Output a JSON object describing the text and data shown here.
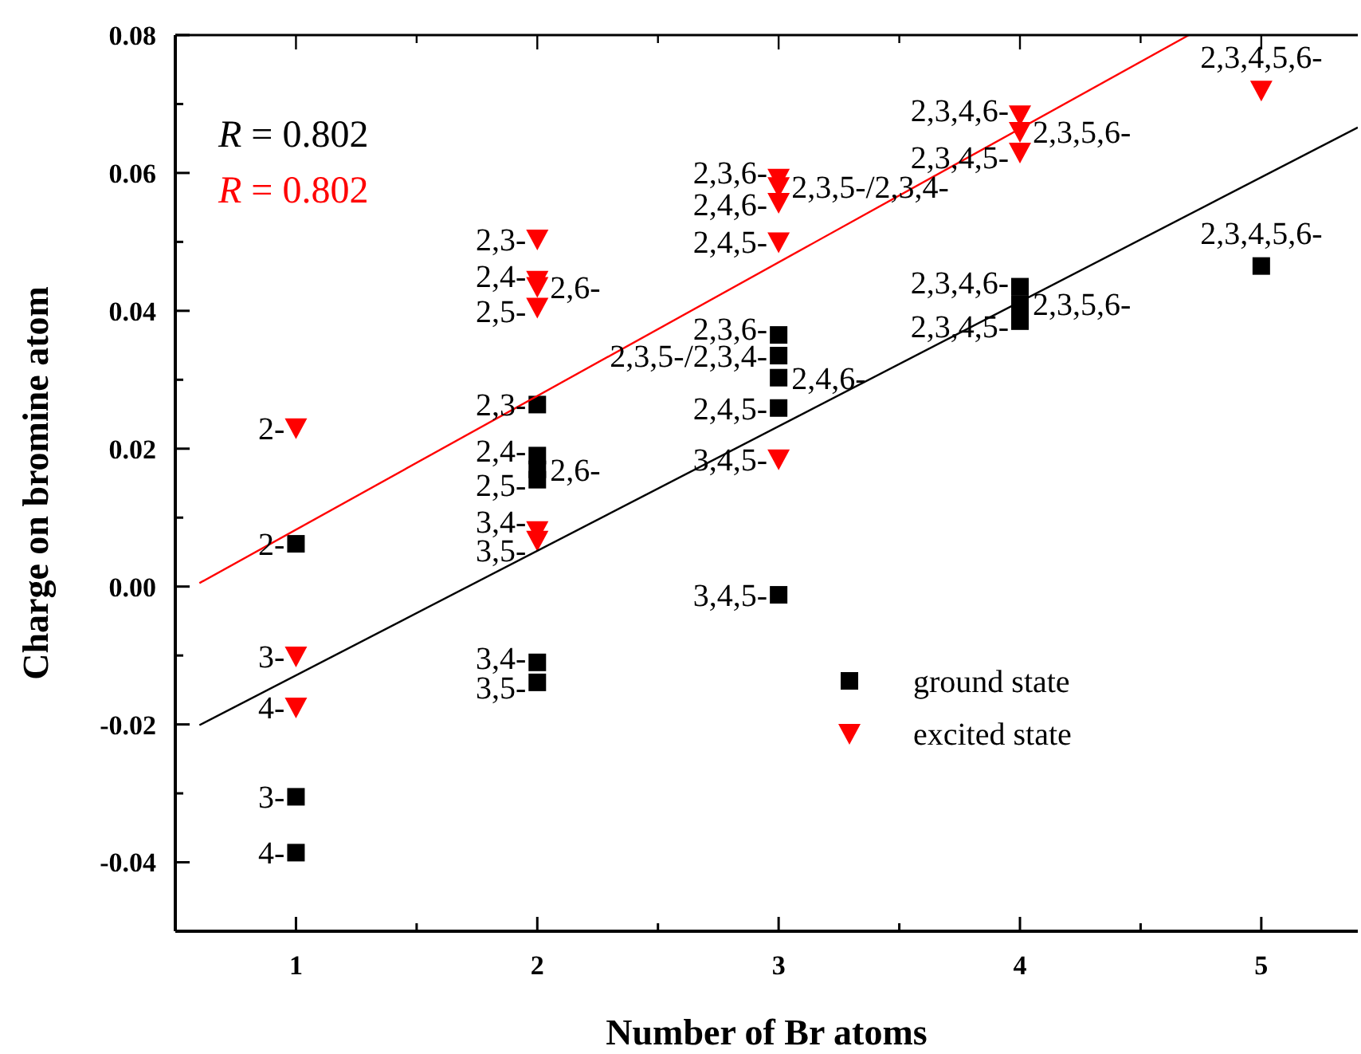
{
  "chart_data": {
    "type": "scatter",
    "xlabel": "Number of Br atoms",
    "ylabel": "Charge on bromine atom",
    "xlim": [
      0.5,
      5.4
    ],
    "ylim": [
      -0.05,
      0.08
    ],
    "xticks": [
      1,
      {
        "value": 1.5,
        "label": null
      },
      2,
      {
        "value": 2.5,
        "label": null
      },
      3,
      {
        "value": 3.5,
        "label": null
      },
      4,
      {
        "value": 4.5,
        "label": null
      },
      5
    ],
    "yticks": [
      {
        "value": -0.05,
        "label": null
      },
      {
        "value": -0.04,
        "label": "-0.04"
      },
      {
        "value": -0.03,
        "label": null
      },
      {
        "value": -0.02,
        "label": "-0.02"
      },
      {
        "value": -0.01,
        "label": null
      },
      {
        "value": 0,
        "label": "0.00"
      },
      {
        "value": 0.01,
        "label": null
      },
      {
        "value": 0.02,
        "label": "0.02"
      },
      {
        "value": 0.03,
        "label": null
      },
      {
        "value": 0.04,
        "label": "0.04"
      },
      {
        "value": 0.05,
        "label": null
      },
      {
        "value": 0.06,
        "label": "0.06"
      },
      {
        "value": 0.07,
        "label": null
      },
      {
        "value": 0.08,
        "label": "0.08"
      }
    ],
    "grid": false,
    "legend": "right",
    "series": [
      {
        "name": "ground state",
        "color": "#000000",
        "marker": "square",
        "x": [
          1,
          1,
          1,
          2,
          2,
          2,
          2,
          2,
          2,
          3,
          3,
          3,
          3,
          3,
          4,
          4,
          4,
          5
        ],
        "values": [
          0.0062,
          -0.0305,
          -0.0386,
          0.0264,
          0.019,
          0.017,
          0.0155,
          -0.011,
          -0.0139,
          0.0365,
          0.0335,
          0.0303,
          0.0259,
          -0.0012,
          0.0435,
          0.041,
          0.0385,
          0.0465
        ]
      },
      {
        "name": "excited state",
        "color": "#ff0000",
        "marker": "triangle",
        "x": [
          1,
          1,
          1,
          2,
          2,
          2,
          2,
          2,
          2,
          3,
          3,
          3,
          3,
          3,
          4,
          4,
          4,
          5
        ],
        "values": [
          0.023,
          -0.0101,
          -0.0175,
          0.0504,
          0.0444,
          0.0435,
          0.0405,
          0.0081,
          0.0067,
          0.0592,
          0.058,
          0.0557,
          0.05,
          0.0185,
          0.0684,
          0.066,
          0.063,
          0.072
        ]
      },
      {
        "type": "line",
        "color": "#000000",
        "marker": "none",
        "x": [
          0.6,
          5.4
        ],
        "values": [
          -0.0201,
          0.0666
        ]
      },
      {
        "type": "line",
        "color": "#ff0000",
        "marker": "none",
        "x": [
          0.6,
          4.7
        ],
        "values": [
          0.0005,
          0.08
        ]
      }
    ],
    "annotations": [
      "R = 0.802",
      "R = 0.802",
      {
        "text": "2-",
        "x": 1,
        "y": 0.0062
      },
      {
        "text": "3-",
        "x": 1,
        "y": -0.0305
      },
      {
        "text": "4-",
        "x": 1,
        "y": -0.0386
      },
      {
        "text": "2,3-",
        "x": 2,
        "y": 0.0264
      },
      {
        "text": "2,4-",
        "x": 2,
        "y": 0.019
      },
      {
        "text": "2,6-",
        "x": 2,
        "y": 0.017
      },
      {
        "text": "2,5-",
        "x": 2,
        "y": 0.0155
      },
      {
        "text": "3,4-",
        "x": 2,
        "y": -0.011
      },
      {
        "text": "3,5-",
        "x": 2,
        "y": -0.0139
      },
      {
        "text": "2,3,6-",
        "x": 3,
        "y": 0.0365
      },
      {
        "text": "2,3,5-/2,3,4-",
        "x": 3,
        "y": 0.0335
      },
      {
        "text": "2,4,6-",
        "x": 3,
        "y": 0.0303
      },
      {
        "text": "2,4,5-",
        "x": 3,
        "y": 0.0259
      },
      {
        "text": "3,4,5-",
        "x": 3,
        "y": -0.0012
      },
      {
        "text": "2,3,4,6-",
        "x": 4,
        "y": 0.0435
      },
      {
        "text": "2,3,5,6-",
        "x": 4,
        "y": 0.041
      },
      {
        "text": "2,3,4,5-",
        "x": 4,
        "y": 0.0385
      },
      {
        "text": "2,3,4,5,6-",
        "x": 5,
        "y": 0.0465
      },
      {
        "text": "2-",
        "x": 1,
        "y": 0.023
      },
      {
        "text": "3-",
        "x": 1,
        "y": -0.0101
      },
      {
        "text": "4-",
        "x": 1,
        "y": -0.0175
      },
      {
        "text": "2,3-",
        "x": 2,
        "y": 0.0504
      },
      {
        "text": "2,4-",
        "x": 2,
        "y": 0.0444
      },
      {
        "text": "2,6-",
        "x": 2,
        "y": 0.0435
      },
      {
        "text": "2,5-",
        "x": 2,
        "y": 0.0405
      },
      {
        "text": "3,4-",
        "x": 2,
        "y": 0.0081
      },
      {
        "text": "3,5-",
        "x": 2,
        "y": 0.0067
      },
      {
        "text": "2,3,6-",
        "x": 3,
        "y": 0.0592
      },
      {
        "text": "2,3,5-/2,3,4-",
        "x": 3,
        "y": 0.058
      },
      {
        "text": "2,4,6-",
        "x": 3,
        "y": 0.0557
      },
      {
        "text": "2,4,5-",
        "x": 3,
        "y": 0.05
      },
      {
        "text": "3,4,5-",
        "x": 3,
        "y": 0.0185
      },
      {
        "text": "2,3,4,6-",
        "x": 4,
        "y": 0.0684
      },
      {
        "text": "2,3,5,6-",
        "x": 4,
        "y": 0.066
      },
      {
        "text": "2,3,4,5-",
        "x": 4,
        "y": 0.063
      },
      {
        "text": "2,3,4,5,6-",
        "x": 5,
        "y": 0.072
      }
    ]
  }
}
